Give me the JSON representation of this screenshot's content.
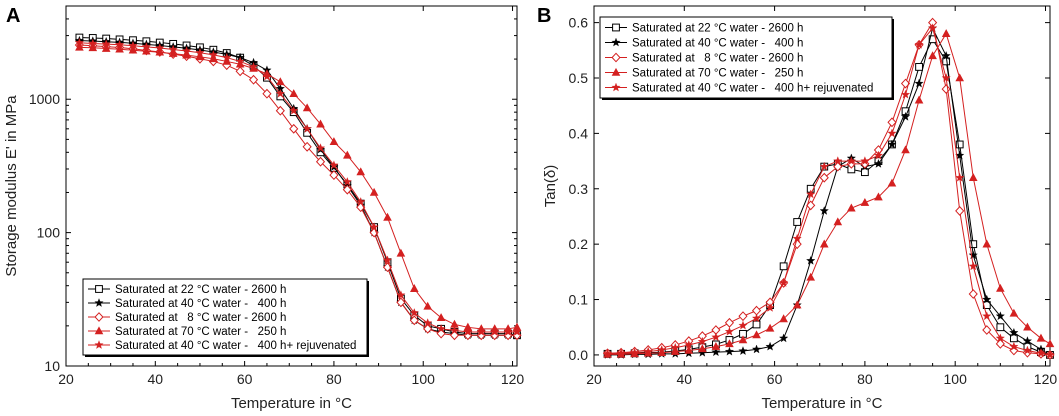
{
  "chart_data": [
    {
      "panel": "A",
      "type": "line",
      "xlabel": "Temperature in °C",
      "ylabel": "Storage modulus E' in MPa",
      "xlim": [
        20,
        121
      ],
      "ylim": [
        10,
        5000
      ],
      "yscale": "log",
      "xticks": [
        20,
        40,
        60,
        80,
        100,
        120
      ],
      "yticks": [
        10,
        100,
        1000
      ],
      "legend_position": "bottom-right",
      "series": [
        {
          "name": "Saturated at 22 °C water - 2600 h",
          "color": "#000000",
          "marker": "square-open",
          "x": [
            23,
            26,
            29,
            32,
            35,
            38,
            41,
            44,
            47,
            50,
            53,
            56,
            59,
            62,
            65,
            68,
            71,
            74,
            77,
            80,
            83,
            86,
            89,
            92,
            95,
            98,
            101,
            104,
            107,
            110,
            113,
            116,
            119,
            121
          ],
          "y": [
            2900,
            2880,
            2850,
            2810,
            2770,
            2720,
            2660,
            2600,
            2530,
            2450,
            2350,
            2220,
            2050,
            1780,
            1450,
            1050,
            800,
            560,
            400,
            305,
            230,
            165,
            110,
            60,
            32,
            24,
            20,
            19,
            18,
            17.5,
            17.5,
            17.5,
            17.5,
            17
          ]
        },
        {
          "name": "Saturated at 40 °C water -   400 h",
          "color": "#000000",
          "marker": "star-filled",
          "x": [
            23,
            26,
            29,
            32,
            35,
            38,
            41,
            44,
            47,
            50,
            53,
            56,
            59,
            62,
            65,
            68,
            71,
            74,
            77,
            80,
            83,
            86,
            89,
            92,
            95,
            98,
            101,
            104,
            107,
            110,
            113,
            116,
            119,
            121
          ],
          "y": [
            2750,
            2730,
            2700,
            2670,
            2630,
            2580,
            2530,
            2470,
            2410,
            2340,
            2260,
            2170,
            2050,
            1880,
            1650,
            1200,
            850,
            600,
            420,
            310,
            225,
            160,
            100,
            55,
            30,
            22,
            19,
            18,
            17.5,
            17,
            17,
            17,
            17,
            17
          ]
        },
        {
          "name": "Saturated at   8 °C water - 2600 h",
          "color": "#d42020",
          "marker": "diamond-open",
          "x": [
            23,
            26,
            29,
            32,
            35,
            38,
            41,
            44,
            47,
            50,
            53,
            56,
            59,
            62,
            65,
            68,
            71,
            74,
            77,
            80,
            83,
            86,
            89,
            92,
            95,
            98,
            101,
            104,
            107,
            110,
            113,
            116,
            119,
            121
          ],
          "y": [
            2550,
            2520,
            2480,
            2440,
            2390,
            2320,
            2260,
            2180,
            2100,
            2010,
            1920,
            1800,
            1620,
            1400,
            1100,
            820,
            600,
            440,
            340,
            270,
            210,
            155,
            100,
            55,
            30,
            22,
            19,
            17.5,
            17,
            17,
            17,
            17,
            17,
            17
          ]
        },
        {
          "name": "Saturated at 70 °C water -   250 h",
          "color": "#d42020",
          "marker": "triangle-filled",
          "x": [
            23,
            26,
            29,
            32,
            35,
            38,
            41,
            44,
            47,
            50,
            53,
            56,
            59,
            62,
            65,
            68,
            71,
            74,
            77,
            80,
            83,
            86,
            89,
            92,
            95,
            98,
            101,
            104,
            107,
            110,
            113,
            116,
            119,
            121
          ],
          "y": [
            2450,
            2430,
            2400,
            2370,
            2330,
            2290,
            2250,
            2200,
            2140,
            2080,
            2010,
            1920,
            1830,
            1700,
            1550,
            1350,
            1100,
            860,
            650,
            480,
            380,
            285,
            200,
            130,
            70,
            38,
            28,
            23,
            20.5,
            19.5,
            19,
            19,
            19,
            19.5
          ]
        },
        {
          "name": "Saturated at 40 °C water -   400 h+ rejuvenated",
          "color": "#d42020",
          "marker": "star-filled",
          "x": [
            23,
            26,
            29,
            32,
            35,
            38,
            41,
            44,
            47,
            50,
            53,
            56,
            59,
            62,
            65,
            68,
            71,
            74,
            77,
            80,
            83,
            86,
            89,
            92,
            95,
            98,
            101,
            104,
            107,
            110,
            113,
            116,
            119,
            121
          ],
          "y": [
            2650,
            2620,
            2590,
            2560,
            2520,
            2470,
            2420,
            2360,
            2300,
            2230,
            2150,
            2050,
            1920,
            1750,
            1480,
            1100,
            820,
            600,
            430,
            320,
            240,
            170,
            110,
            62,
            34,
            25,
            21,
            19,
            18.5,
            18,
            18,
            18,
            18,
            18
          ]
        }
      ]
    },
    {
      "panel": "B",
      "type": "line",
      "xlabel": "Temperature in °C",
      "ylabel": "Tan(δ)",
      "xlim": [
        20,
        121
      ],
      "ylim": [
        -0.02,
        0.63
      ],
      "xticks": [
        20,
        40,
        60,
        80,
        100,
        120
      ],
      "yticks": [
        0.0,
        0.1,
        0.2,
        0.3,
        0.4,
        0.5,
        0.6
      ],
      "ytick_labels": [
        "0.0",
        "0.1",
        "0.2",
        "0.3",
        "0.4",
        "0.5",
        "0.6"
      ],
      "legend_position": "top-left",
      "series": [
        {
          "name": "Saturated at 22 °C water - 2600 h",
          "color": "#000000",
          "marker": "square-open",
          "x": [
            23,
            26,
            29,
            32,
            35,
            38,
            41,
            44,
            47,
            50,
            53,
            56,
            59,
            62,
            65,
            68,
            71,
            74,
            77,
            80,
            83,
            86,
            89,
            92,
            95,
            98,
            101,
            104,
            107,
            110,
            113,
            116,
            119,
            121
          ],
          "y": [
            0.002,
            0.002,
            0.003,
            0.004,
            0.005,
            0.007,
            0.01,
            0.014,
            0.019,
            0.027,
            0.038,
            0.055,
            0.09,
            0.16,
            0.24,
            0.3,
            0.34,
            0.345,
            0.335,
            0.33,
            0.35,
            0.38,
            0.44,
            0.52,
            0.57,
            0.53,
            0.38,
            0.2,
            0.09,
            0.05,
            0.03,
            0.015,
            0.005,
            0.0
          ]
        },
        {
          "name": "Saturated at 40 °C water -   400 h",
          "color": "#000000",
          "marker": "star-filled",
          "x": [
            23,
            26,
            29,
            32,
            35,
            38,
            41,
            44,
            47,
            50,
            53,
            56,
            59,
            62,
            65,
            68,
            71,
            74,
            77,
            80,
            83,
            86,
            89,
            92,
            95,
            98,
            101,
            104,
            107,
            110,
            113,
            116,
            119,
            121
          ],
          "y": [
            0.0,
            0.0,
            0.001,
            0.001,
            0.002,
            0.002,
            0.003,
            0.004,
            0.005,
            0.006,
            0.007,
            0.01,
            0.015,
            0.03,
            0.09,
            0.17,
            0.26,
            0.34,
            0.355,
            0.34,
            0.345,
            0.38,
            0.43,
            0.49,
            0.59,
            0.54,
            0.36,
            0.18,
            0.1,
            0.07,
            0.04,
            0.025,
            0.01,
            0.0
          ]
        },
        {
          "name": "Saturated at   8 °C water - 2600 h",
          "color": "#d42020",
          "marker": "diamond-open",
          "x": [
            23,
            26,
            29,
            32,
            35,
            38,
            41,
            44,
            47,
            50,
            53,
            56,
            59,
            62,
            65,
            68,
            71,
            74,
            77,
            80,
            83,
            86,
            89,
            92,
            95,
            98,
            101,
            104,
            107,
            110,
            113,
            116,
            119,
            121
          ],
          "y": [
            0.003,
            0.004,
            0.006,
            0.009,
            0.013,
            0.018,
            0.025,
            0.034,
            0.045,
            0.058,
            0.07,
            0.08,
            0.095,
            0.13,
            0.2,
            0.27,
            0.32,
            0.34,
            0.345,
            0.345,
            0.37,
            0.42,
            0.49,
            0.56,
            0.6,
            0.48,
            0.26,
            0.11,
            0.045,
            0.02,
            0.008,
            0.004,
            0.002,
            0.0
          ]
        },
        {
          "name": "Saturated at 70 °C water -   250 h",
          "color": "#d42020",
          "marker": "triangle-filled",
          "x": [
            23,
            26,
            29,
            32,
            35,
            38,
            41,
            44,
            47,
            50,
            53,
            56,
            59,
            62,
            65,
            68,
            71,
            74,
            77,
            80,
            83,
            86,
            89,
            92,
            95,
            98,
            101,
            104,
            107,
            110,
            113,
            116,
            119,
            121
          ],
          "y": [
            0.001,
            0.001,
            0.002,
            0.003,
            0.004,
            0.006,
            0.008,
            0.011,
            0.015,
            0.02,
            0.027,
            0.036,
            0.048,
            0.065,
            0.09,
            0.14,
            0.2,
            0.24,
            0.265,
            0.275,
            0.285,
            0.31,
            0.37,
            0.46,
            0.54,
            0.58,
            0.5,
            0.32,
            0.2,
            0.12,
            0.075,
            0.05,
            0.03,
            0.02
          ]
        },
        {
          "name": "Saturated at 40 °C water -   400 h+ rejuvenated",
          "color": "#d42020",
          "marker": "star-filled",
          "x": [
            23,
            26,
            29,
            32,
            35,
            38,
            41,
            44,
            47,
            50,
            53,
            56,
            59,
            62,
            65,
            68,
            71,
            74,
            77,
            80,
            83,
            86,
            89,
            92,
            95,
            98,
            101,
            104,
            107,
            110,
            113,
            116,
            119,
            121
          ],
          "y": [
            0.002,
            0.003,
            0.004,
            0.006,
            0.009,
            0.013,
            0.018,
            0.024,
            0.032,
            0.042,
            0.053,
            0.066,
            0.085,
            0.13,
            0.21,
            0.29,
            0.34,
            0.35,
            0.35,
            0.35,
            0.36,
            0.4,
            0.47,
            0.56,
            0.59,
            0.5,
            0.32,
            0.16,
            0.07,
            0.03,
            0.015,
            0.008,
            0.003,
            0.0
          ]
        }
      ]
    }
  ]
}
